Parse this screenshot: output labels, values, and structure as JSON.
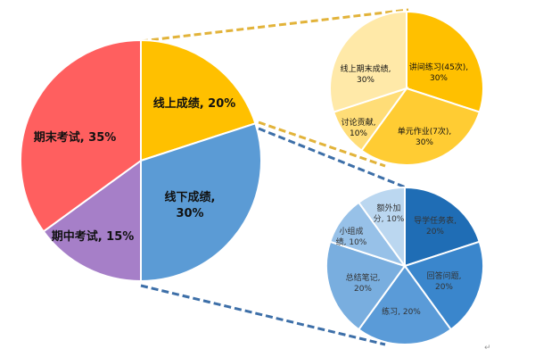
{
  "chart_data": [
    {
      "type": "pie",
      "categories": [
        "线上成绩",
        "线下成绩",
        "期中考试",
        "期末考试"
      ],
      "values": [
        20,
        30,
        15,
        35
      ],
      "labels": [
        [
          "线上成绩, 20%"
        ],
        [
          "线下成绩,",
          "30%"
        ],
        [
          "期中考试, 15%"
        ],
        [
          "期末考试, 35%"
        ]
      ],
      "colors": [
        "#FFC000",
        "#5B9BD5",
        "#A67FC8",
        "#FF5F5F"
      ]
    },
    {
      "type": "pie",
      "categories": [
        "讲间练习(45次)",
        "单元作业(7次)",
        "讨论贡献",
        "线上期末成绩"
      ],
      "values": [
        30,
        30,
        10,
        30
      ],
      "labels": [
        [
          "讲间练习(45次),",
          "30%"
        ],
        [
          "单元作业(7次),",
          "30%"
        ],
        [
          "讨论贡献,",
          "10%"
        ],
        [
          "线上期末成绩,",
          "30%"
        ]
      ],
      "colors": [
        "#FFC000",
        "#FFCC33",
        "#FFDD77",
        "#FFE9A8"
      ]
    },
    {
      "type": "pie",
      "categories": [
        "导学任务表",
        "回答问题",
        "练习",
        "总结笔记",
        "小组成绩",
        "额外加分"
      ],
      "values": [
        20,
        20,
        20,
        20,
        10,
        10
      ],
      "labels": [
        [
          "导学任务表,",
          "20%"
        ],
        [
          "回答问题,",
          "20%"
        ],
        [
          "练习, 20%"
        ],
        [
          "总结笔记,",
          "20%"
        ],
        [
          "小组成",
          "绩, 10%"
        ],
        [
          "额外加",
          "分, 10%"
        ]
      ],
      "colors": [
        "#1F6DB5",
        "#3A86CC",
        "#5A9BD8",
        "#79AEDF",
        "#97C1E8",
        "#BBD7F0"
      ]
    }
  ]
}
